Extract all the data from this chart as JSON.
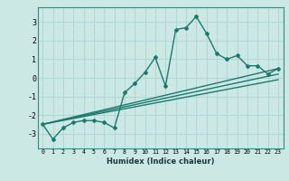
{
  "xlabel": "Humidex (Indice chaleur)",
  "ylabel": "",
  "bg_color": "#cce8e5",
  "grid_color": "#aed4d0",
  "line_color": "#1a7a6e",
  "series": [
    {
      "x": [
        0,
        1,
        2,
        3,
        4,
        5,
        6,
        7,
        8,
        9,
        10,
        11,
        12,
        13,
        14,
        15,
        16,
        17,
        18,
        19,
        20,
        21,
        22,
        23
      ],
      "y": [
        -2.5,
        -3.3,
        -2.7,
        -2.4,
        -2.3,
        -2.3,
        -2.4,
        -2.7,
        -0.8,
        -0.3,
        0.3,
        1.1,
        -0.45,
        2.6,
        2.7,
        3.3,
        2.4,
        1.3,
        1.0,
        1.2,
        0.65,
        0.65,
        0.2,
        0.5
      ]
    },
    {
      "x": [
        0,
        23
      ],
      "y": [
        -2.5,
        0.5
      ]
    },
    {
      "x": [
        0,
        23
      ],
      "y": [
        -2.5,
        0.2
      ]
    },
    {
      "x": [
        0,
        23
      ],
      "y": [
        -2.5,
        -0.1
      ]
    }
  ],
  "xlim": [
    -0.5,
    23.5
  ],
  "ylim": [
    -3.8,
    3.8
  ],
  "xticks": [
    0,
    1,
    2,
    3,
    4,
    5,
    6,
    7,
    8,
    9,
    10,
    11,
    12,
    13,
    14,
    15,
    16,
    17,
    18,
    19,
    20,
    21,
    22,
    23
  ],
  "yticks": [
    -3,
    -2,
    -1,
    0,
    1,
    2,
    3
  ],
  "marker": "D",
  "markersize": 2.0,
  "linewidth": 1.0,
  "xlabel_fontsize": 6.0,
  "xtick_fontsize": 4.8,
  "ytick_fontsize": 6.0
}
